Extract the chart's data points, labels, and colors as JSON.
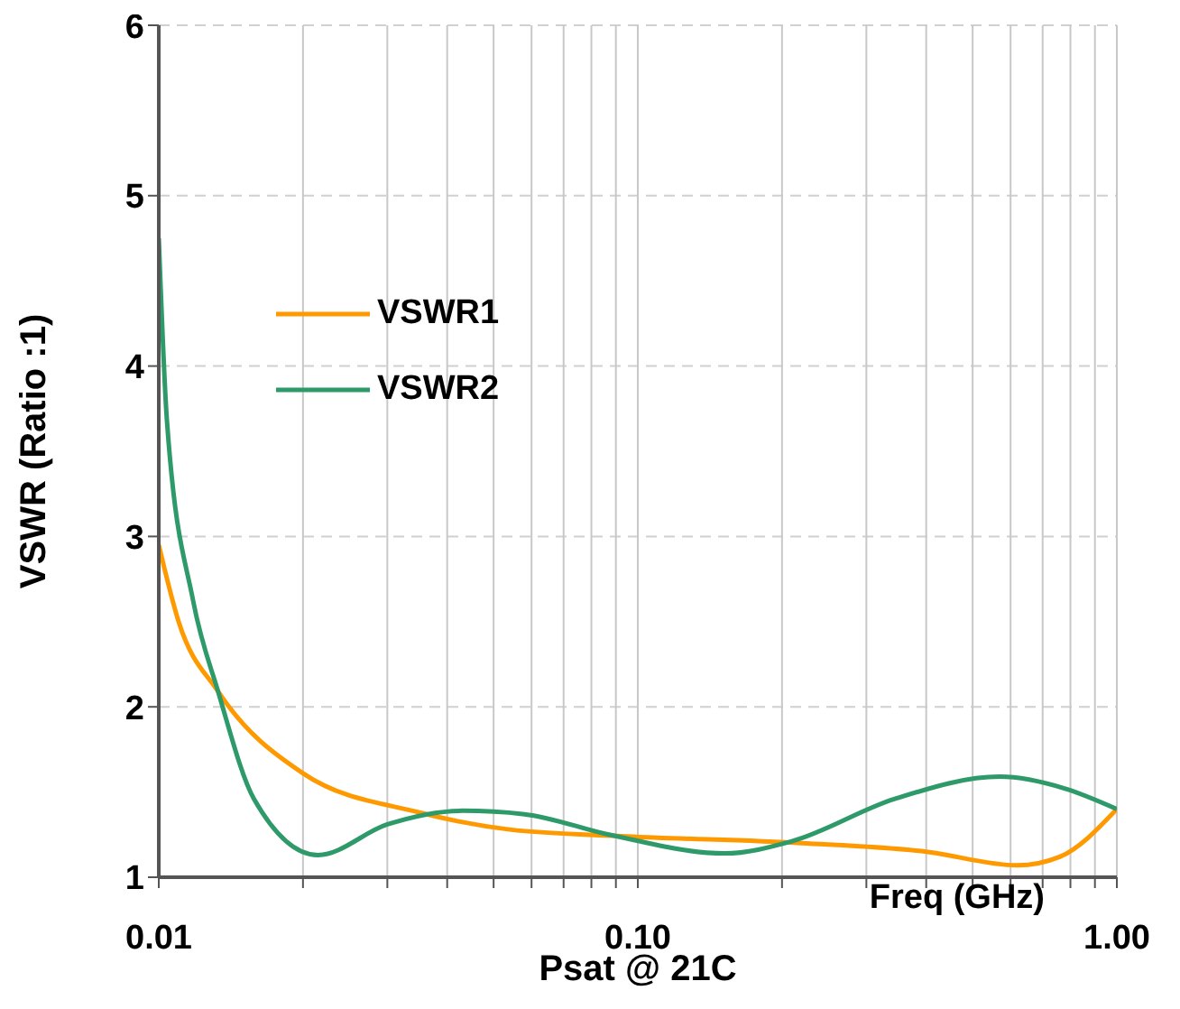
{
  "chart_data": {
    "type": "line",
    "xlabel": "Psat @ 21C",
    "ylabel": "VSWR (Ratio :1)",
    "annotations": [
      "Freq (GHz)"
    ],
    "log": "x",
    "grid": true,
    "legend": "left",
    "marker": "none",
    "line_style": "solid",
    "xlim": [
      0.01,
      1
    ],
    "ylim": [
      1,
      6
    ],
    "xticks": [
      0.01,
      {
        "value": 0.02,
        "label": null
      },
      {
        "value": 0.03,
        "label": null
      },
      {
        "value": 0.04,
        "label": null
      },
      {
        "value": 0.05,
        "label": null
      },
      {
        "value": 0.06,
        "label": null
      },
      {
        "value": 0.07,
        "label": null
      },
      {
        "value": 0.08,
        "label": null
      },
      {
        "value": 0.09,
        "label": null
      },
      {
        "value": 0.1,
        "label": "0.10"
      },
      {
        "value": 0.2,
        "label": null
      },
      {
        "value": 0.3,
        "label": null
      },
      {
        "value": 0.4,
        "label": null
      },
      {
        "value": 0.5,
        "label": null
      },
      {
        "value": 0.6,
        "label": null
      },
      {
        "value": 0.7,
        "label": null
      },
      {
        "value": 0.8,
        "label": null
      },
      {
        "value": 0.9,
        "label": null
      },
      {
        "value": 1,
        "label": "1.00"
      }
    ],
    "yticks": [
      1,
      2,
      3,
      4,
      5,
      6
    ],
    "series": [
      {
        "name": "VSWR1",
        "color": "#ff9900",
        "x": [
          0.01,
          0.011,
          0.0133,
          0.02,
          0.035,
          0.054,
          0.095,
          0.22,
          0.4,
          0.62,
          0.76,
          1
        ],
        "values": [
          2.95,
          2.5,
          2.09,
          1.61,
          1.38,
          1.28,
          1.24,
          1.2,
          1.15,
          1.07,
          1.12,
          1.4
        ]
      },
      {
        "name": "VSWR2",
        "color": "#2e9a6a",
        "x": [
          0.01,
          0.0104,
          0.0118,
          0.0133,
          0.0158,
          0.0215,
          0.03,
          0.043,
          0.058,
          0.087,
          0.152,
          0.209,
          0.344,
          0.57,
          0.78,
          1
        ],
        "values": [
          4.75,
          3.68,
          2.62,
          2.09,
          1.46,
          1.13,
          1.31,
          1.39,
          1.37,
          1.25,
          1.14,
          1.21,
          1.46,
          1.59,
          1.52,
          1.4
        ]
      }
    ]
  }
}
